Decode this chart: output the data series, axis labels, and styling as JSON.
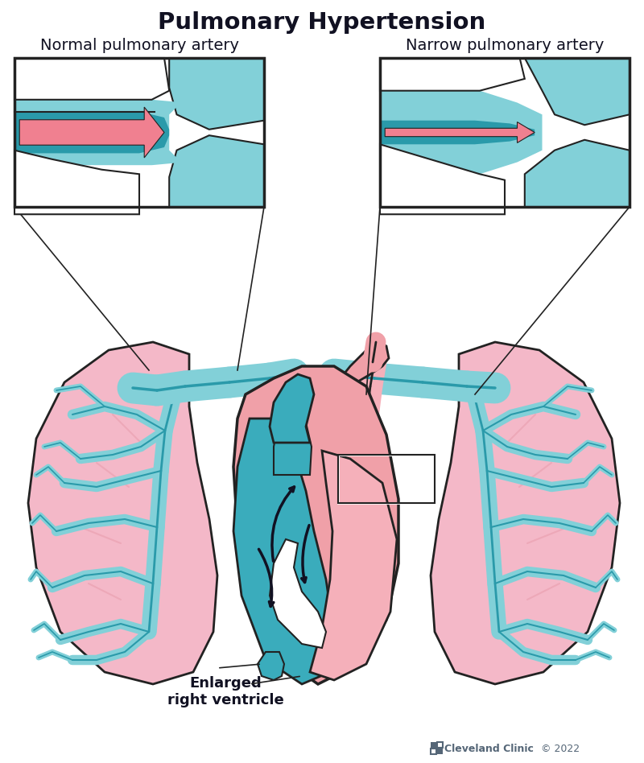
{
  "title": "Pulmonary Hypertension",
  "title_fontsize": 21,
  "title_fontweight": "bold",
  "title_color": "#111122",
  "label_left": "Normal pulmonary artery",
  "label_right": "Narrow pulmonary artery",
  "label_fontsize": 14,
  "annotation_text": "Enlarged\nright ventricle",
  "annotation_fontsize": 13,
  "annotation_fontweight": "bold",
  "watermark": "© 2022",
  "watermark_clinic": "Cleveland Clinic",
  "bg_color": "#ffffff",
  "lung_pink": "#f4b8c8",
  "lung_pink_mid": "#eda8b8",
  "lung_vein_pink": "#e8909e",
  "artery_light_blue": "#82d0d8",
  "artery_dark_teal": "#2a9aaa",
  "artery_mid_teal": "#48b8c8",
  "blood_pink": "#f08090",
  "heart_pink_light": "#f5b0ba",
  "heart_pink": "#f0a0a8",
  "heart_dark_pink": "#e88090",
  "box_border": "#222222",
  "dark_navy": "#111122",
  "vent_teal": "#3aacbc",
  "vent_teal_dark": "#288898"
}
